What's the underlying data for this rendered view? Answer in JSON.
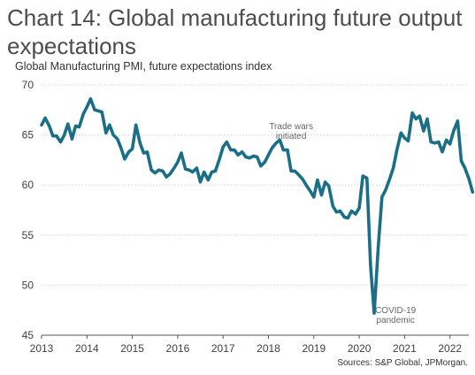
{
  "chart_data": {
    "type": "line",
    "title": "Chart 14: Global manufacturing future output expectations",
    "ylabel": "Global Manufacturing PMI, future expectations index",
    "source": "Sources: S&P Global, JPMorgan.",
    "ylim": [
      45,
      70
    ],
    "yticks": [
      45,
      50,
      55,
      60,
      65,
      70
    ],
    "xlim": [
      2013.0,
      2022.6
    ],
    "xticks": [
      "2013",
      "2014",
      "2015",
      "2016",
      "2017",
      "2018",
      "2019",
      "2020",
      "2021",
      "2022"
    ],
    "grid": true,
    "line_color": "#1a6f86",
    "annotations": [
      {
        "lines": [
          "Trade wars",
          "initiated"
        ],
        "x": 2018.5,
        "y": 65.6
      },
      {
        "lines": [
          "COVID-19",
          "pandemic"
        ],
        "x": 2020.8,
        "y": 47.2
      }
    ],
    "series": [
      {
        "name": "",
        "x": [
          2013.0,
          2013.08,
          2013.17,
          2013.25,
          2013.33,
          2013.42,
          2013.5,
          2013.58,
          2013.67,
          2013.75,
          2013.83,
          2013.92,
          2014.0,
          2014.08,
          2014.17,
          2014.25,
          2014.33,
          2014.42,
          2014.5,
          2014.58,
          2014.67,
          2014.75,
          2014.83,
          2014.92,
          2015.0,
          2015.08,
          2015.17,
          2015.25,
          2015.33,
          2015.42,
          2015.5,
          2015.58,
          2015.67,
          2015.75,
          2015.83,
          2015.92,
          2016.0,
          2016.08,
          2016.17,
          2016.25,
          2016.33,
          2016.42,
          2016.5,
          2016.58,
          2016.67,
          2016.75,
          2016.83,
          2016.92,
          2017.0,
          2017.08,
          2017.17,
          2017.25,
          2017.33,
          2017.42,
          2017.5,
          2017.58,
          2017.67,
          2017.75,
          2017.83,
          2017.92,
          2018.0,
          2018.08,
          2018.17,
          2018.25,
          2018.33,
          2018.42,
          2018.5,
          2018.58,
          2018.67,
          2018.75,
          2018.83,
          2018.92,
          2019.0,
          2019.08,
          2019.17,
          2019.25,
          2019.33,
          2019.42,
          2019.5,
          2019.58,
          2019.67,
          2019.75,
          2019.83,
          2019.92,
          2020.0,
          2020.08,
          2020.17,
          2020.25,
          2020.33,
          2020.42,
          2020.5,
          2020.58,
          2020.67,
          2020.75,
          2020.83,
          2020.92,
          2021.0,
          2021.08,
          2021.17,
          2021.25,
          2021.33,
          2021.42,
          2021.5,
          2021.58,
          2021.67,
          2021.75,
          2021.83,
          2021.92,
          2022.0,
          2022.08,
          2022.17,
          2022.25,
          2022.33,
          2022.42,
          2022.5
        ],
        "values": [
          66.0,
          66.7,
          65.9,
          64.9,
          64.9,
          64.3,
          65.0,
          66.1,
          64.6,
          65.9,
          65.8,
          67.1,
          67.8,
          68.6,
          67.5,
          67.4,
          67.3,
          65.2,
          66.0,
          65.0,
          64.6,
          63.7,
          62.6,
          63.3,
          63.6,
          66.0,
          64.2,
          63.2,
          63.3,
          61.5,
          61.2,
          61.5,
          61.4,
          60.8,
          61.1,
          61.7,
          62.3,
          63.2,
          61.6,
          61.5,
          61.3,
          61.7,
          60.3,
          61.3,
          60.5,
          61.3,
          61.4,
          62.6,
          63.8,
          64.3,
          63.5,
          63.5,
          63.0,
          63.3,
          62.8,
          62.7,
          62.9,
          62.8,
          61.9,
          62.3,
          63.0,
          63.7,
          64.2,
          64.5,
          63.5,
          63.5,
          61.4,
          61.4,
          61.0,
          60.6,
          60.0,
          59.4,
          58.8,
          60.5,
          59.0,
          60.3,
          59.9,
          57.9,
          57.3,
          57.4,
          56.8,
          56.7,
          57.4,
          57.1,
          57.7,
          60.9,
          60.7,
          52.0,
          47.2,
          53.8,
          58.8,
          59.5,
          60.6,
          61.7,
          63.5,
          65.2,
          64.7,
          64.4,
          67.2,
          66.6,
          66.9,
          65.4,
          66.6,
          64.3,
          64.2,
          64.3,
          63.3,
          64.5,
          64.1,
          65.4,
          66.4,
          62.4,
          61.7,
          60.6,
          59.3
        ]
      }
    ]
  }
}
